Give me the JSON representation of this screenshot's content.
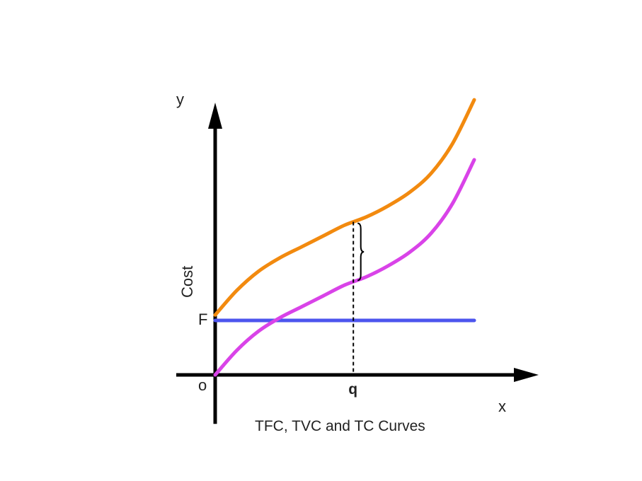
{
  "chart_data": {
    "type": "line",
    "title": "TFC, TVC and TC Curves",
    "xlabel": "x",
    "ylabel": "y",
    "y_quantity_label": "Cost",
    "origin_label": "o",
    "fixed_cost_label": "F",
    "marked_x_label": "q",
    "x": [
      0,
      0.5,
      1,
      1.5,
      2,
      2.5,
      3,
      3.5,
      4,
      4.5,
      5,
      5.5,
      6
    ],
    "fixed_cost": 1.0,
    "marked_x": 3.2,
    "xlim": [
      0,
      7
    ],
    "ylim": [
      -0.9,
      5.0
    ],
    "grid": false,
    "legend": "none",
    "series": [
      {
        "key": "tc",
        "color": "#f28a0f",
        "values": [
          1.1,
          1.55,
          1.9,
          2.15,
          2.35,
          2.55,
          2.75,
          2.9,
          3.1,
          3.35,
          3.7,
          4.25,
          5.05
        ]
      },
      {
        "key": "tvc",
        "color": "#d943e8",
        "values": [
          0.0,
          0.45,
          0.8,
          1.05,
          1.25,
          1.45,
          1.65,
          1.8,
          2.0,
          2.25,
          2.6,
          3.15,
          3.95
        ]
      },
      {
        "key": "tfc",
        "color": "#4d55ee",
        "values": [
          1.0,
          1.0,
          1.0,
          1.0,
          1.0,
          1.0,
          1.0,
          1.0,
          1.0,
          1.0,
          1.0,
          1.0,
          1.0
        ]
      }
    ]
  }
}
